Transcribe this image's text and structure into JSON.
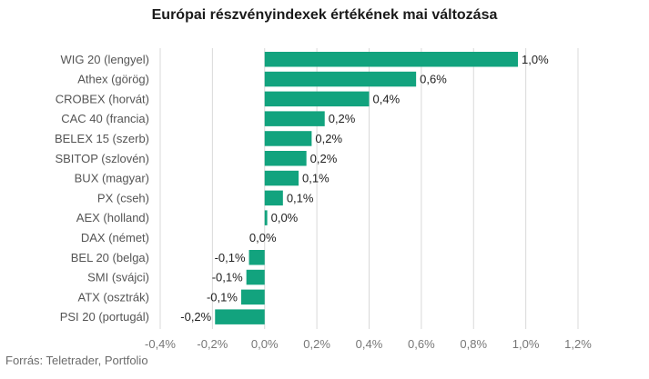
{
  "title": "Európai részvényindexek értékének mai változása",
  "source": "Forrás: Teletrader, Portfolio",
  "chart_data": {
    "type": "bar",
    "orientation": "horizontal",
    "title": "Európai részvényindexek értékének mai változása",
    "categories": [
      "WIG 20 (lengyel)",
      "Athex (görög)",
      "CROBEX (horvát)",
      "CAC 40 (francia)",
      "BELEX 15 (szerb)",
      "SBITOP (szlovén)",
      "BUX (magyar)",
      "PX (cseh)",
      "AEX (holland)",
      "DAX (német)",
      "BEL 20 (belga)",
      "SMI (svájci)",
      "ATX (osztrák)",
      "PSI 20 (portugál)"
    ],
    "values": [
      0.97,
      0.58,
      0.4,
      0.23,
      0.18,
      0.16,
      0.13,
      0.07,
      0.01,
      0.0,
      -0.06,
      -0.07,
      -0.09,
      -0.19
    ],
    "data_labels": [
      "1,0%",
      "0,6%",
      "0,4%",
      "0,2%",
      "0,2%",
      "0,2%",
      "0,1%",
      "0,1%",
      "0,0%",
      "0,0%",
      "-0,1%",
      "-0,1%",
      "-0,1%",
      "-0,2%"
    ],
    "xlim": [
      -0.4,
      1.2
    ],
    "xticks": [
      -0.4,
      -0.2,
      0.0,
      0.2,
      0.4,
      0.6,
      0.8,
      1.0,
      1.2
    ],
    "xtick_labels": [
      "-0,4%",
      "-0,2%",
      "0,0%",
      "0,2%",
      "0,4%",
      "0,6%",
      "0,8%",
      "1,0%",
      "1,2%"
    ],
    "xlabel": "",
    "ylabel": "",
    "grid": "vertical",
    "legend": "none",
    "bar_color": "#12a37e",
    "grid_color": "#d9d9d9"
  }
}
